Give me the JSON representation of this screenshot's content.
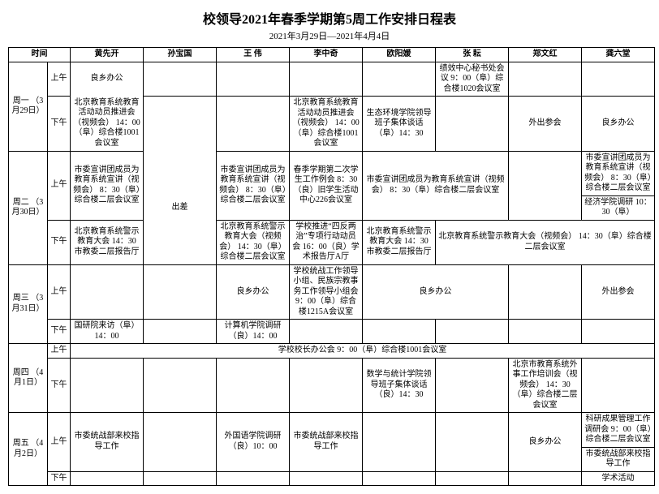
{
  "title": "校领导2021年春季学期第5周工作安排日程表",
  "subtitle": "2021年3月29日—2021年4月4日",
  "headers": {
    "time": "时间",
    "p1": "黄先开",
    "p2": "孙宝国",
    "p3": "王  伟",
    "p4": "李中奇",
    "p5": "欧阳媛",
    "p6": "张  耘",
    "p7": "郑文红",
    "p8": "龚六堂"
  },
  "slots": {
    "am": "上午",
    "pm": "下午"
  },
  "days": {
    "mon": "周一\n（3月29日）",
    "tue": "周二\n（3月30日）",
    "wed": "周三\n（3月31日）",
    "thu": "周四\n（4月1日）",
    "fri": "周五\n（4月2日）"
  },
  "cells": {
    "mon_am_p1": "良乡办公",
    "mon_am_p6": "绩效中心秘书处会议 9：00（阜）综合楼1020会议室",
    "mon_pm_p1": "北京教育系统教育活动动员推进会（视频会）\n14：00（阜）综合楼1001会议室",
    "mon_pm_p4": "北京教育系统教育活动动员推进会（视频会）\n14：00（阜）综合楼1001会议室",
    "mon_pm_p5": "生态环境学院领导班子集体谈话（阜）14：30",
    "mon_pm_p7": "外出参会",
    "mon_pm_p8": "良乡办公",
    "tue_am_p1": "市委宣讲团成员为教育系统宣讲（视频会）\n8：30（阜）综合楼二层会议室",
    "tue_am_p2": "出差",
    "tue_am_p3": "市委宣讲团成员为教育系统宣讲（视频会）\n8：30（阜）综合楼二层会议室",
    "tue_am_p4": "春季学期第二次学生工作例会\n8：30（良）旧学生活动中心226会议室",
    "tue_am_p56": "市委宣讲团成员为教育系统宣讲（视频会）\n8：30（阜）综合楼二层会议室",
    "tue_am_p8a": "市委宣讲团成员为教育系统宣讲（视频会）\n8：30（阜）综合楼二层会议室",
    "tue_am_p8b": "经济学院调研 10：30（阜）",
    "tue_pm_p1": "北京教育系统警示教育大会\n14：30 市教委二层报告厅",
    "tue_pm_p3": "北京教育系统警示教育大会（视频会）\n14：30（阜）综合楼二层会议室",
    "tue_pm_p4": "学校推进“四反两治”专项行动动员会\n16：00（良）学术报告厅A厅",
    "tue_pm_p5": "北京教育系统警示教育大会\n14：30 市教委二层报告厅",
    "tue_pm_p678": "北京教育系统警示教育大会（视频会）\n14：30（阜）综合楼二层会议室",
    "wed_am_p3": "良乡办公",
    "wed_am_p4": "学校统战工作领导小组、民族宗教事务工作领导小组会\n9：00（阜）综合楼1215A会议室",
    "wed_am_p56": "良乡办公",
    "wed_am_p8": "外出参会",
    "wed_pm_p1": "国研院来访（阜）14：00",
    "wed_pm_p3": "计算机学院调研（良）14：00",
    "thu_am_all": "学校校长办公会\n9：00（阜）综合楼1001会议室",
    "thu_pm_p5": "数学与统计学院领导班子集体谈话（良）14：30",
    "thu_pm_p7": "北京市教育系统外事工作培训会（视频会）\n14：30（阜）综合楼二层会议室",
    "fri_am_p1": "市委统战部来校指导工作",
    "fri_am_p3": "外国语学院调研（良）10：00",
    "fri_am_p4": "市委统战部来校指导工作",
    "fri_am_p7": "良乡办公",
    "fri_am_p8a": "科研成果管理工作调研会\n9：00（阜）综合楼二层会议室",
    "fri_am_p8b": "市委统战部来校指导工作",
    "fri_pm_p8": "学术活动"
  }
}
